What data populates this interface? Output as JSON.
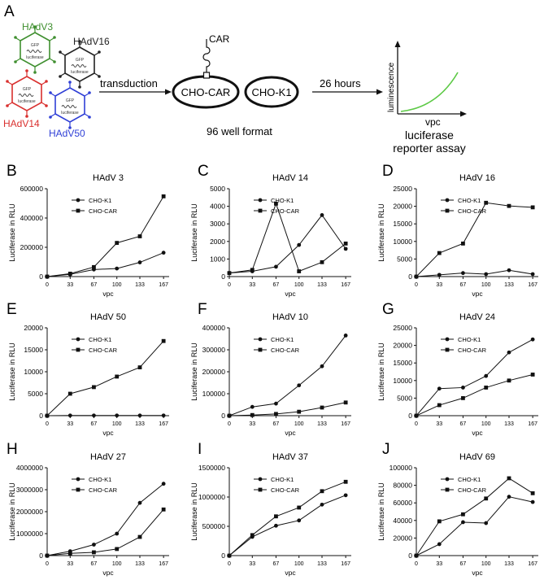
{
  "schematic": {
    "panel_label": "A",
    "viruses": [
      {
        "name": "HAdV3",
        "color": "#3f8f2f",
        "inner_top": "GFP",
        "inner_bottom": "luciferase"
      },
      {
        "name": "HAdV16",
        "color": "#222222",
        "inner_top": "GFP",
        "inner_bottom": "luciferase"
      },
      {
        "name": "HAdV14",
        "color": "#d9302e",
        "inner_top": "GFP",
        "inner_bottom": "luciferase"
      },
      {
        "name": "HAdV50",
        "color": "#2f3fd6",
        "inner_top": "GFP",
        "inner_bottom": "luciferase"
      }
    ],
    "transduction_label": "transduction",
    "receptor_label": "CAR",
    "cell1_label": "CHO-CAR",
    "cell2_label": "CHO-K1",
    "plate_label": "96 well format",
    "time_label": "26 hours",
    "assay_ylabel": "luminescence",
    "assay_xlabel": "vpc",
    "assay_title_line1": "luciferase",
    "assay_title_line2": "reporter assay",
    "assay_curve_color": "#5cc945"
  },
  "chart_data": [
    {
      "panel": "B",
      "type": "line",
      "title": "HAdV 3",
      "xlabel": "vpc",
      "ylabel": "Luciferase in RLU",
      "x": [
        0,
        33,
        67,
        100,
        133,
        167
      ],
      "ylim": [
        0,
        600000
      ],
      "yticks": [
        "0",
        "200000",
        "400000",
        "600000"
      ],
      "series": [
        {
          "name": "CHO-K1",
          "marker": "circle",
          "values": [
            0,
            15000,
            48000,
            55000,
            97000,
            163000
          ]
        },
        {
          "name": "CHO-CAR",
          "marker": "square",
          "values": [
            0,
            20000,
            65000,
            230000,
            275000,
            548000
          ]
        }
      ]
    },
    {
      "panel": "C",
      "type": "line",
      "title": "HAdV 14",
      "xlabel": "vpc",
      "ylabel": "Luciferase in RLU",
      "x": [
        0,
        33,
        67,
        100,
        133,
        167
      ],
      "ylim": [
        0,
        5000
      ],
      "yticks": [
        "0",
        "1000",
        "2000",
        "3000",
        "4000",
        "5000"
      ],
      "series": [
        {
          "name": "CHO-K1",
          "marker": "circle",
          "values": [
            200,
            300,
            560,
            1800,
            3500,
            1580
          ]
        },
        {
          "name": "CHO-CAR",
          "marker": "square",
          "values": [
            200,
            380,
            4150,
            300,
            820,
            1880
          ]
        }
      ]
    },
    {
      "panel": "D",
      "type": "line",
      "title": "HAdV 16",
      "xlabel": "vpc",
      "ylabel": "Luciferase in RLU",
      "x": [
        0,
        33,
        67,
        100,
        133,
        167
      ],
      "ylim": [
        0,
        25000
      ],
      "yticks": [
        "0",
        "5000",
        "10000",
        "15000",
        "20000",
        "25000"
      ],
      "series": [
        {
          "name": "CHO-K1",
          "marker": "circle",
          "values": [
            0,
            500,
            1000,
            700,
            1800,
            700
          ]
        },
        {
          "name": "CHO-CAR",
          "marker": "square",
          "values": [
            0,
            6700,
            9400,
            21000,
            20100,
            19700
          ]
        }
      ]
    },
    {
      "panel": "E",
      "type": "line",
      "title": "HAdV 50",
      "xlabel": "vpc",
      "ylabel": "Luciferase in RLU",
      "x": [
        0,
        33,
        67,
        100,
        133,
        167
      ],
      "ylim": [
        0,
        20000
      ],
      "yticks": [
        "0",
        "5000",
        "10000",
        "15000",
        "20000"
      ],
      "series": [
        {
          "name": "CHO-K1",
          "marker": "circle",
          "values": [
            0,
            50,
            50,
            50,
            50,
            50
          ]
        },
        {
          "name": "CHO-CAR",
          "marker": "square",
          "values": [
            0,
            5000,
            6500,
            8900,
            11000,
            17000
          ]
        }
      ]
    },
    {
      "panel": "F",
      "type": "line",
      "title": "HAdV 10",
      "xlabel": "vpc",
      "ylabel": "Luciferase in RLU",
      "x": [
        0,
        33,
        67,
        100,
        133,
        167
      ],
      "ylim": [
        0,
        400000
      ],
      "yticks": [
        "0",
        "100000",
        "200000",
        "300000",
        "400000"
      ],
      "series": [
        {
          "name": "CHO-K1",
          "marker": "circle",
          "values": [
            0,
            40000,
            55000,
            138000,
            225000,
            365000
          ]
        },
        {
          "name": "CHO-CAR",
          "marker": "square",
          "values": [
            0,
            3000,
            8000,
            18000,
            37000,
            60000
          ]
        }
      ]
    },
    {
      "panel": "G",
      "type": "line",
      "title": "HAdV 24",
      "xlabel": "vpc",
      "ylabel": "Luciferase in RLU",
      "x": [
        0,
        33,
        67,
        100,
        133,
        167
      ],
      "ylim": [
        0,
        25000
      ],
      "yticks": [
        "0",
        "5000",
        "10000",
        "15000",
        "20000",
        "25000"
      ],
      "series": [
        {
          "name": "CHO-K1",
          "marker": "circle",
          "values": [
            0,
            7700,
            8000,
            11300,
            18000,
            21700
          ]
        },
        {
          "name": "CHO-CAR",
          "marker": "square",
          "values": [
            0,
            3000,
            5000,
            8000,
            10000,
            11700
          ]
        }
      ]
    },
    {
      "panel": "H",
      "type": "line",
      "title": "HAdV 27",
      "xlabel": "vpc",
      "ylabel": "Luciferase in RLU",
      "x": [
        0,
        33,
        67,
        100,
        133,
        167
      ],
      "ylim": [
        0,
        4000000
      ],
      "yticks": [
        "0",
        "1000000",
        "2000000",
        "3000000",
        "4000000"
      ],
      "series": [
        {
          "name": "CHO-K1",
          "marker": "circle",
          "values": [
            0,
            200000,
            500000,
            1000000,
            2400000,
            3270000
          ]
        },
        {
          "name": "CHO-CAR",
          "marker": "square",
          "values": [
            0,
            100000,
            150000,
            300000,
            850000,
            2100000
          ]
        }
      ]
    },
    {
      "panel": "I",
      "type": "line",
      "title": "HAdV 37",
      "xlabel": "vpc",
      "ylabel": "Luciferase in RLU",
      "x": [
        0,
        33,
        67,
        100,
        133,
        167
      ],
      "ylim": [
        0,
        1500000
      ],
      "yticks": [
        "0",
        "500000",
        "1000000",
        "1500000"
      ],
      "series": [
        {
          "name": "CHO-K1",
          "marker": "circle",
          "values": [
            0,
            320000,
            510000,
            600000,
            870000,
            1030000
          ]
        },
        {
          "name": "CHO-CAR",
          "marker": "square",
          "values": [
            0,
            350000,
            670000,
            820000,
            1100000,
            1260000
          ]
        }
      ]
    },
    {
      "panel": "J",
      "type": "line",
      "title": "HAdV 69",
      "xlabel": "vpc",
      "ylabel": "Luciferase in RLU",
      "x": [
        0,
        33,
        67,
        100,
        133,
        167
      ],
      "ylim": [
        0,
        100000
      ],
      "yticks": [
        "0",
        "20000",
        "40000",
        "60000",
        "80000",
        "100000"
      ],
      "series": [
        {
          "name": "CHO-K1",
          "marker": "circle",
          "values": [
            0,
            13000,
            38000,
            37000,
            67000,
            61000
          ]
        },
        {
          "name": "CHO-CAR",
          "marker": "square",
          "values": [
            0,
            39000,
            47000,
            65000,
            88000,
            71000
          ]
        }
      ]
    }
  ]
}
